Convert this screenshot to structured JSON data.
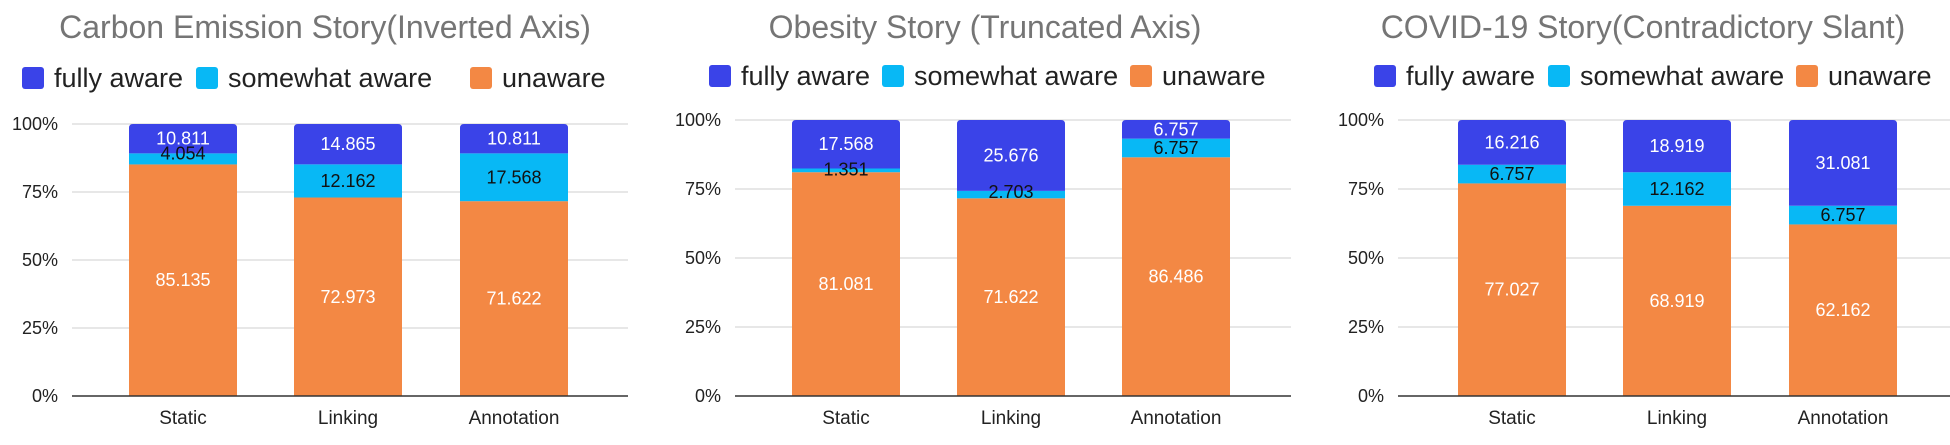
{
  "colors": {
    "fully_aware": "#3a43e8",
    "somewhat_aware": "#08b8f5",
    "unaware": "#f38844",
    "grid": "#cfcfcf",
    "axis": "#333333",
    "title": "#757575"
  },
  "chart_data": [
    {
      "type": "bar",
      "stacked": true,
      "title": "Carbon Emission Story(Inverted Axis)",
      "categories": [
        "Static",
        "Linking",
        "Annotation"
      ],
      "yticks": [
        "0%",
        "25%",
        "50%",
        "75%",
        "100%"
      ],
      "ylim": [
        0,
        100
      ],
      "legend_position": "top",
      "series": [
        {
          "name": "unaware",
          "color": "#f38844",
          "values": [
            85.135,
            72.973,
            71.622
          ]
        },
        {
          "name": "somewhat aware",
          "color": "#08b8f5",
          "values": [
            4.054,
            12.162,
            17.568
          ]
        },
        {
          "name": "fully aware",
          "color": "#3a43e8",
          "values": [
            10.811,
            14.865,
            10.811
          ]
        }
      ],
      "data_labels": [
        [
          "85.135",
          "72.973",
          "71.622"
        ],
        [
          "4.054",
          "12.162",
          "17.568"
        ],
        [
          "10.811",
          "14.865",
          "10.811"
        ]
      ],
      "legend_order": [
        "fully aware",
        "somewhat aware",
        "unaware"
      ]
    },
    {
      "type": "bar",
      "stacked": true,
      "title": "Obesity Story (Truncated Axis)",
      "categories": [
        "Static",
        "Linking",
        "Annotation"
      ],
      "yticks": [
        "0%",
        "25%",
        "50%",
        "75%",
        "100%"
      ],
      "ylim": [
        0,
        100
      ],
      "legend_position": "top",
      "series": [
        {
          "name": "unaware",
          "color": "#f38844",
          "values": [
            81.081,
            71.622,
            86.486
          ]
        },
        {
          "name": "somewhat aware",
          "color": "#08b8f5",
          "values": [
            1.351,
            2.703,
            6.757
          ]
        },
        {
          "name": "fully aware",
          "color": "#3a43e8",
          "values": [
            17.568,
            25.676,
            6.757
          ]
        }
      ],
      "data_labels": [
        [
          "81.081",
          "71.622",
          "86.486"
        ],
        [
          "1.351",
          "2.703",
          "6.757"
        ],
        [
          "17.568",
          "25.676",
          "6.757"
        ]
      ],
      "legend_order": [
        "fully aware",
        "somewhat aware",
        "unaware"
      ]
    },
    {
      "type": "bar",
      "stacked": true,
      "title": "COVID-19 Story(Contradictory Slant)",
      "categories": [
        "Static",
        "Linking",
        "Annotation"
      ],
      "yticks": [
        "0%",
        "25%",
        "50%",
        "75%",
        "100%"
      ],
      "ylim": [
        0,
        100
      ],
      "legend_position": "top",
      "series": [
        {
          "name": "unaware",
          "color": "#f38844",
          "values": [
            77.027,
            68.919,
            62.162
          ]
        },
        {
          "name": "somewhat aware",
          "color": "#08b8f5",
          "values": [
            6.757,
            12.162,
            6.757
          ]
        },
        {
          "name": "fully aware",
          "color": "#3a43e8",
          "values": [
            16.216,
            18.919,
            31.081
          ]
        }
      ],
      "data_labels": [
        [
          "77.027",
          "68.919",
          "62.162"
        ],
        [
          "6.757",
          "12.162",
          "6.757"
        ],
        [
          "16.216",
          "18.919",
          "31.081"
        ]
      ],
      "legend_order": [
        "fully aware",
        "somewhat aware",
        "unaware"
      ]
    }
  ]
}
